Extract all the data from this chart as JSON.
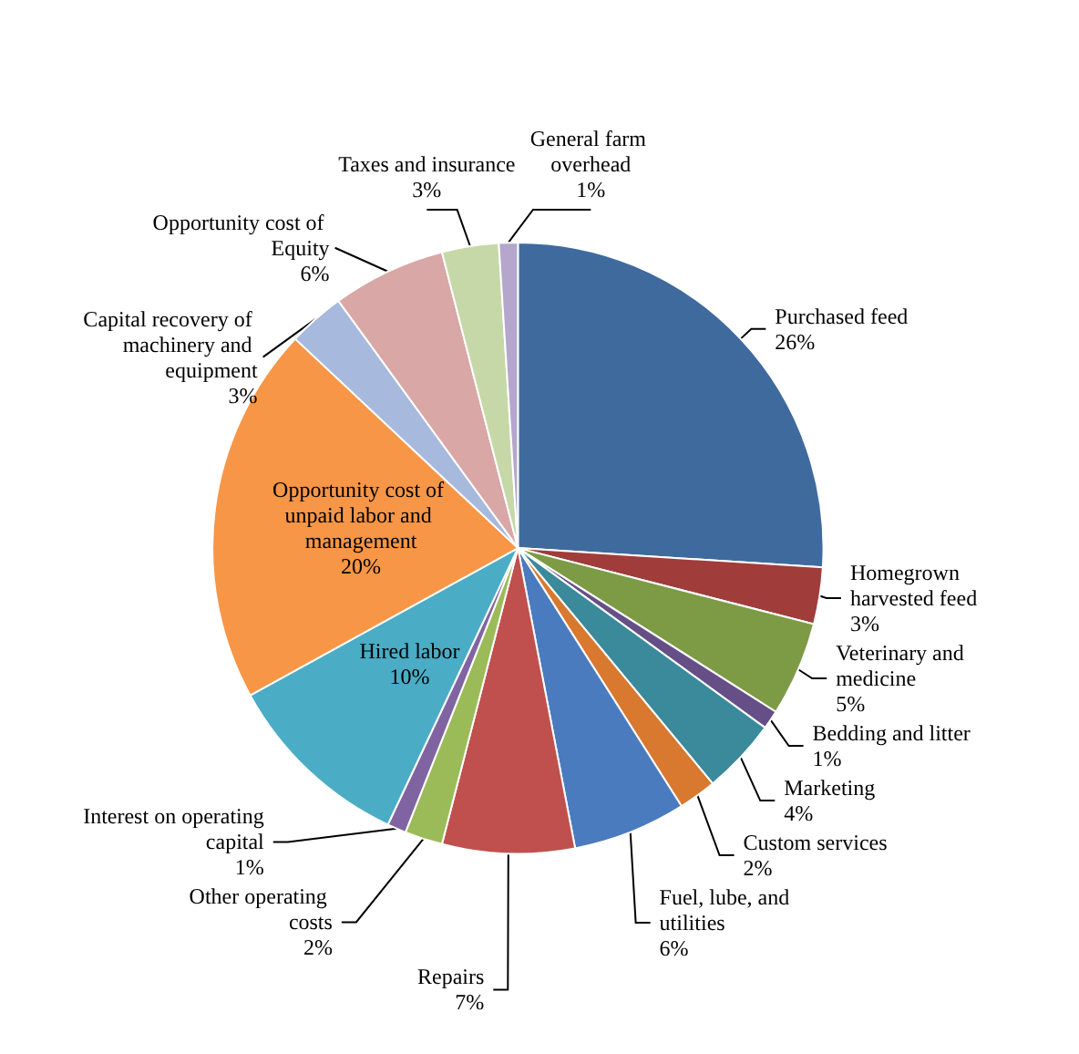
{
  "chart_data": {
    "type": "pie",
    "categories": [
      "Purchased feed",
      "Homegrown harvested feed",
      "Veterinary and medicine",
      "Bedding and litter",
      "Marketing",
      "Custom services",
      "Fuel, lube, and utilities",
      "Repairs",
      "Other operating costs",
      "Interest on operating capital",
      "Hired labor",
      "Opportunity cost of unpaid labor and management",
      "Capital recovery of machinery and equipment",
      "Opportunity cost of Equity",
      "Taxes and insurance",
      "General farm overhead"
    ],
    "values": [
      26,
      3,
      5,
      1,
      4,
      2,
      6,
      7,
      2,
      1,
      10,
      20,
      3,
      6,
      3,
      1
    ],
    "colors": [
      "#3f6a9e",
      "#a03c3a",
      "#7d9a45",
      "#664f87",
      "#3a8a9c",
      "#d9782f",
      "#4b7bbf",
      "#c0504d",
      "#9bbb59",
      "#8064a2",
      "#4bacc6",
      "#f79646",
      "#a7b9dc",
      "#d9a7a6",
      "#c7d8a8",
      "#b5a6cc"
    ],
    "value_labels": [
      "26%",
      "3%",
      "5%",
      "1%",
      "4%",
      "2%",
      "6%",
      "7%",
      "2%",
      "1%",
      "10%",
      "20%",
      "3%",
      "6%",
      "3%",
      "1%"
    ]
  }
}
